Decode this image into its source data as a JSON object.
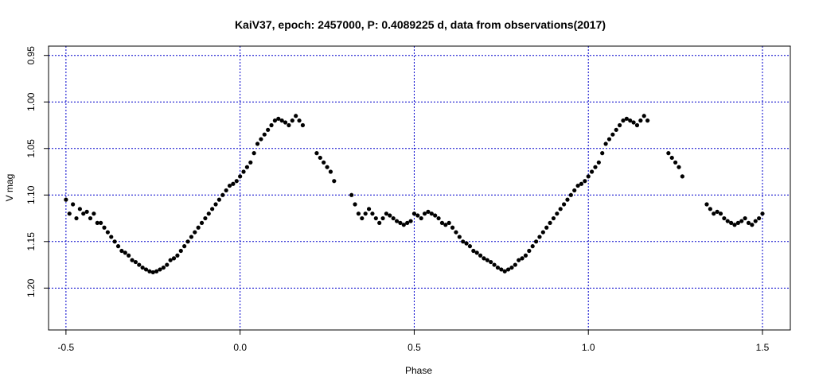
{
  "chart_data": {
    "type": "scatter",
    "title": "KaiV37, epoch: 2457000, P: 0.4089225 d, data from observations(2017)",
    "xlabel": "Phase",
    "ylabel": "V mag",
    "xlim": [
      -0.55,
      1.58
    ],
    "ylim": [
      1.245,
      0.94
    ],
    "y_inverted": true,
    "x_ticks": [
      -0.5,
      0.0,
      0.5,
      1.0,
      1.5
    ],
    "x_tick_labels": [
      "-0.5",
      "0.0",
      "0.5",
      "1.0",
      "1.5"
    ],
    "y_ticks": [
      0.95,
      1.0,
      1.05,
      1.1,
      1.15,
      1.2
    ],
    "y_tick_labels": [
      "0.95",
      "1.00",
      "1.05",
      "1.10",
      "1.15",
      "1.20"
    ],
    "grid": true,
    "grid_color": "#0000cc",
    "point_color": "#000000",
    "series": [
      {
        "phase_value_pairs": [
          [
            -0.5,
            1.105
          ],
          [
            -0.49,
            1.12
          ],
          [
            -0.48,
            1.11
          ],
          [
            -0.47,
            1.125
          ],
          [
            -0.46,
            1.115
          ],
          [
            -0.45,
            1.12
          ],
          [
            -0.44,
            1.118
          ],
          [
            -0.43,
            1.125
          ],
          [
            -0.42,
            1.12
          ],
          [
            -0.41,
            1.13
          ],
          [
            -0.4,
            1.13
          ],
          [
            -0.39,
            1.135
          ],
          [
            -0.38,
            1.14
          ],
          [
            -0.37,
            1.145
          ],
          [
            -0.36,
            1.15
          ],
          [
            -0.35,
            1.155
          ],
          [
            -0.34,
            1.16
          ],
          [
            -0.33,
            1.162
          ],
          [
            -0.32,
            1.165
          ],
          [
            -0.31,
            1.17
          ],
          [
            -0.3,
            1.172
          ],
          [
            -0.29,
            1.175
          ],
          [
            -0.28,
            1.178
          ],
          [
            -0.27,
            1.18
          ],
          [
            -0.26,
            1.182
          ],
          [
            -0.25,
            1.183
          ],
          [
            -0.24,
            1.182
          ],
          [
            -0.23,
            1.18
          ],
          [
            -0.22,
            1.178
          ],
          [
            -0.21,
            1.175
          ],
          [
            -0.2,
            1.17
          ],
          [
            -0.19,
            1.168
          ],
          [
            -0.18,
            1.165
          ],
          [
            -0.17,
            1.16
          ],
          [
            -0.16,
            1.155
          ],
          [
            -0.15,
            1.15
          ],
          [
            -0.14,
            1.145
          ],
          [
            -0.13,
            1.14
          ],
          [
            -0.12,
            1.135
          ],
          [
            -0.11,
            1.13
          ],
          [
            -0.1,
            1.125
          ],
          [
            -0.09,
            1.12
          ],
          [
            -0.08,
            1.115
          ],
          [
            -0.07,
            1.11
          ],
          [
            -0.06,
            1.105
          ],
          [
            -0.05,
            1.1
          ],
          [
            -0.04,
            1.095
          ],
          [
            -0.03,
            1.09
          ],
          [
            -0.02,
            1.088
          ],
          [
            -0.01,
            1.085
          ],
          [
            0.0,
            1.08
          ],
          [
            0.01,
            1.075
          ],
          [
            0.02,
            1.07
          ],
          [
            0.03,
            1.065
          ],
          [
            0.04,
            1.055
          ],
          [
            0.05,
            1.045
          ],
          [
            0.06,
            1.04
          ],
          [
            0.07,
            1.035
          ],
          [
            0.08,
            1.03
          ],
          [
            0.09,
            1.025
          ],
          [
            0.1,
            1.02
          ],
          [
            0.11,
            1.018
          ],
          [
            0.12,
            1.02
          ],
          [
            0.13,
            1.022
          ],
          [
            0.14,
            1.025
          ],
          [
            0.15,
            1.02
          ],
          [
            0.16,
            1.015
          ],
          [
            0.17,
            1.02
          ],
          [
            0.18,
            1.025
          ],
          [
            0.22,
            1.055
          ],
          [
            0.23,
            1.06
          ],
          [
            0.24,
            1.065
          ],
          [
            0.25,
            1.07
          ],
          [
            0.26,
            1.075
          ],
          [
            0.27,
            1.085
          ],
          [
            0.32,
            1.1
          ],
          [
            0.33,
            1.11
          ],
          [
            0.34,
            1.12
          ],
          [
            0.35,
            1.125
          ],
          [
            0.36,
            1.12
          ],
          [
            0.37,
            1.115
          ],
          [
            0.38,
            1.12
          ],
          [
            0.39,
            1.125
          ],
          [
            0.4,
            1.13
          ],
          [
            0.41,
            1.125
          ],
          [
            0.42,
            1.12
          ],
          [
            0.43,
            1.122
          ],
          [
            0.44,
            1.125
          ],
          [
            0.45,
            1.128
          ],
          [
            0.46,
            1.13
          ],
          [
            0.47,
            1.132
          ],
          [
            0.48,
            1.13
          ],
          [
            0.49,
            1.128
          ],
          [
            0.5,
            1.12
          ],
          [
            0.51,
            1.122
          ],
          [
            0.52,
            1.125
          ],
          [
            0.53,
            1.12
          ],
          [
            0.54,
            1.118
          ],
          [
            0.55,
            1.12
          ],
          [
            0.56,
            1.122
          ],
          [
            0.57,
            1.125
          ],
          [
            0.58,
            1.13
          ],
          [
            0.59,
            1.132
          ],
          [
            0.6,
            1.13
          ],
          [
            0.61,
            1.135
          ],
          [
            0.62,
            1.14
          ],
          [
            0.63,
            1.145
          ],
          [
            0.64,
            1.15
          ],
          [
            0.65,
            1.152
          ],
          [
            0.66,
            1.155
          ],
          [
            0.67,
            1.16
          ],
          [
            0.68,
            1.162
          ],
          [
            0.69,
            1.165
          ],
          [
            0.7,
            1.168
          ],
          [
            0.71,
            1.17
          ],
          [
            0.72,
            1.172
          ],
          [
            0.73,
            1.175
          ],
          [
            0.74,
            1.178
          ],
          [
            0.75,
            1.18
          ],
          [
            0.76,
            1.182
          ],
          [
            0.77,
            1.18
          ],
          [
            0.78,
            1.178
          ],
          [
            0.79,
            1.175
          ],
          [
            0.8,
            1.17
          ],
          [
            0.81,
            1.168
          ],
          [
            0.82,
            1.165
          ],
          [
            0.83,
            1.16
          ],
          [
            0.84,
            1.155
          ],
          [
            0.85,
            1.15
          ],
          [
            0.86,
            1.145
          ],
          [
            0.87,
            1.14
          ],
          [
            0.88,
            1.135
          ],
          [
            0.89,
            1.13
          ],
          [
            0.9,
            1.125
          ],
          [
            0.91,
            1.12
          ],
          [
            0.92,
            1.115
          ],
          [
            0.93,
            1.11
          ],
          [
            0.94,
            1.105
          ],
          [
            0.95,
            1.1
          ],
          [
            0.96,
            1.095
          ],
          [
            0.97,
            1.09
          ],
          [
            0.98,
            1.088
          ],
          [
            0.99,
            1.085
          ],
          [
            1.0,
            1.08
          ],
          [
            1.01,
            1.075
          ],
          [
            1.02,
            1.07
          ],
          [
            1.03,
            1.065
          ],
          [
            1.04,
            1.055
          ],
          [
            1.05,
            1.045
          ],
          [
            1.06,
            1.04
          ],
          [
            1.07,
            1.035
          ],
          [
            1.08,
            1.03
          ],
          [
            1.09,
            1.025
          ],
          [
            1.1,
            1.02
          ],
          [
            1.11,
            1.018
          ],
          [
            1.12,
            1.02
          ],
          [
            1.13,
            1.022
          ],
          [
            1.14,
            1.025
          ],
          [
            1.15,
            1.02
          ],
          [
            1.16,
            1.015
          ],
          [
            1.17,
            1.02
          ],
          [
            1.23,
            1.055
          ],
          [
            1.24,
            1.06
          ],
          [
            1.25,
            1.065
          ],
          [
            1.26,
            1.07
          ],
          [
            1.27,
            1.08
          ],
          [
            1.34,
            1.11
          ],
          [
            1.35,
            1.115
          ],
          [
            1.36,
            1.12
          ],
          [
            1.37,
            1.118
          ],
          [
            1.38,
            1.12
          ],
          [
            1.39,
            1.125
          ],
          [
            1.4,
            1.128
          ],
          [
            1.41,
            1.13
          ],
          [
            1.42,
            1.132
          ],
          [
            1.43,
            1.13
          ],
          [
            1.44,
            1.128
          ],
          [
            1.45,
            1.125
          ],
          [
            1.46,
            1.13
          ],
          [
            1.47,
            1.132
          ],
          [
            1.48,
            1.128
          ],
          [
            1.49,
            1.125
          ],
          [
            1.5,
            1.12
          ]
        ]
      }
    ]
  }
}
